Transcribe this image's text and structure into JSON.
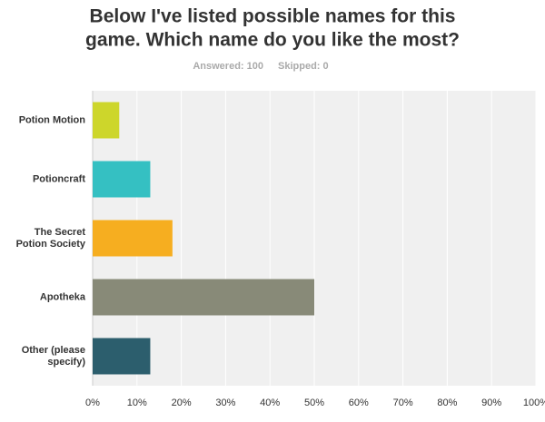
{
  "chart_data": {
    "type": "hbar",
    "title_lines": [
      "Below I've listed possible names for this",
      "game. Which name do you like the most?"
    ],
    "subtitle": [
      "Answered: 100",
      "Skipped: 0"
    ],
    "categories": [
      "Potion Motion",
      "Potioncraft",
      "The Secret Potion Society",
      "Apotheka",
      "Other (please specify)"
    ],
    "values": [
      6,
      13,
      18,
      50,
      13
    ],
    "colors": [
      "#cdd62b",
      "#35c0c2",
      "#f6ae20",
      "#888a78",
      "#2c5e6d"
    ],
    "xlim": [
      0,
      100
    ],
    "xticks": [
      {
        "value": 0,
        "label": "0%"
      },
      {
        "value": 10,
        "label": "10%"
      },
      {
        "value": 20,
        "label": "20%"
      },
      {
        "value": 30,
        "label": "30%"
      },
      {
        "value": 40,
        "label": "40%"
      },
      {
        "value": 50,
        "label": "50%"
      },
      {
        "value": 60,
        "label": "60%"
      },
      {
        "value": 70,
        "label": "70%"
      },
      {
        "value": 80,
        "label": "80%"
      },
      {
        "value": 90,
        "label": "90%"
      },
      {
        "value": 100,
        "label": "100%"
      }
    ],
    "grid": true
  }
}
